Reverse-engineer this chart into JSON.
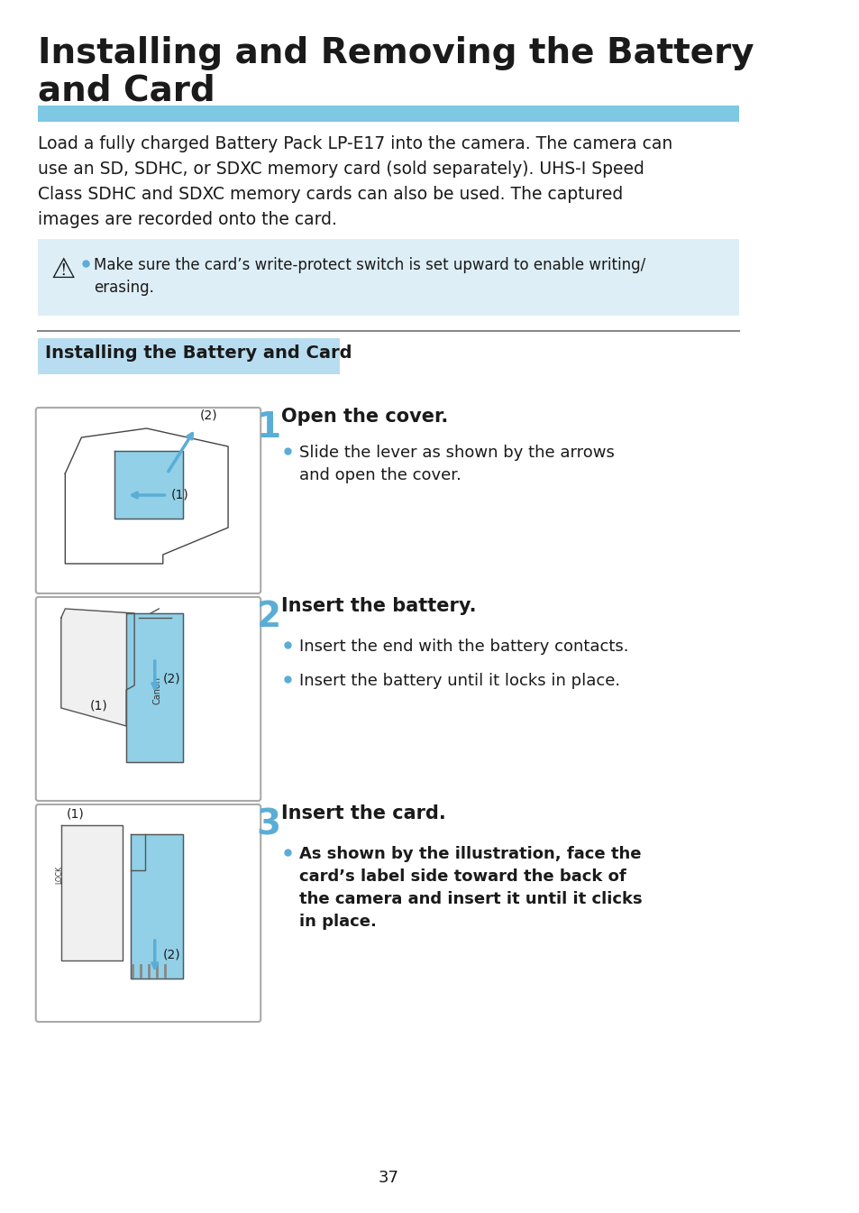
{
  "title_line1": "Installing and Removing the Battery",
  "title_line2": "and Card",
  "title_color": "#1a1a1a",
  "title_bar_color": "#7ec8e3",
  "body_text": "Load a fully charged Battery Pack LP-E17 into the camera. The camera can\nuse an SD, SDHC, or SDXC memory card (sold separately). UHS-I Speed\nClass SDHC and SDXC memory cards can also be used. The captured\nimages are recorded onto the card.",
  "warning_bg": "#ddeef6",
  "warning_text": "Make sure the card’s write-protect switch is set upward to enable writing/\nerasing.",
  "section_header": "Installing the Battery and Card",
  "section_header_bg": "#b8ddf0",
  "step1_title": "Open the cover.",
  "step1_bullet": "Slide the lever as shown by the arrows\nand open the cover.",
  "step2_title": "Insert the battery.",
  "step2_bullet1": "Insert the end with the battery contacts.",
  "step2_bullet2": "Insert the battery until it locks in place.",
  "step3_title": "Insert the card.",
  "step3_bullet": "As shown by the illustration, face the\ncard’s label side toward the back of\nthe camera and insert it until it clicks\nin place.",
  "step_number_color": "#5aadd6",
  "bullet_color": "#5aadd6",
  "page_number": "37",
  "bg_color": "#ffffff",
  "text_color": "#1a1a1a"
}
